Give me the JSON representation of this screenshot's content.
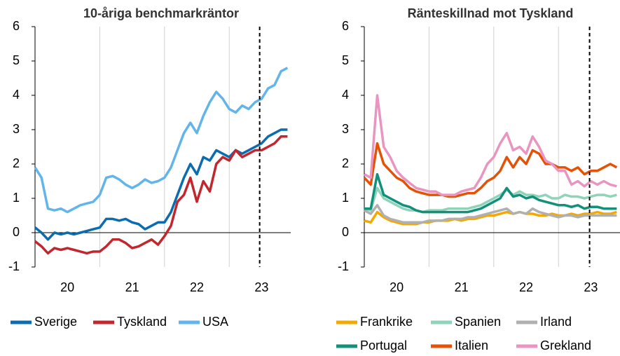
{
  "chart_data": [
    {
      "type": "line",
      "title": "10-åriga benchmarkräntor",
      "x": [
        20.0,
        20.1,
        20.2,
        20.3,
        20.4,
        20.5,
        20.6,
        20.7,
        20.8,
        20.9,
        21.0,
        21.1,
        21.2,
        21.3,
        21.4,
        21.5,
        21.6,
        21.7,
        21.8,
        21.9,
        22.0,
        22.1,
        22.2,
        22.3,
        22.4,
        22.5,
        22.6,
        22.7,
        22.8,
        22.9,
        23.0,
        23.1,
        23.2,
        23.3,
        23.4,
        23.5,
        23.6,
        23.7,
        23.8,
        23.9
      ],
      "xlim": [
        20.0,
        23.95
      ],
      "xticks": [
        20,
        21,
        22,
        23
      ],
      "ylim": [
        -1,
        6
      ],
      "yticks": [
        -1,
        0,
        1,
        2,
        3,
        4,
        5,
        6
      ],
      "vline_x": 23.47,
      "series": [
        {
          "name": "Sverige",
          "color": "#0b6cb0",
          "values": [
            0.15,
            0.0,
            -0.2,
            0.0,
            -0.05,
            0.0,
            -0.05,
            0.0,
            0.05,
            0.1,
            0.15,
            0.4,
            0.4,
            0.35,
            0.4,
            0.3,
            0.25,
            0.1,
            0.2,
            0.3,
            0.3,
            0.6,
            1.1,
            1.6,
            2.0,
            1.7,
            2.2,
            2.1,
            2.4,
            2.3,
            2.2,
            2.4,
            2.3,
            2.4,
            2.5,
            2.6,
            2.8,
            2.9,
            3.0,
            3.0
          ]
        },
        {
          "name": "Tyskland",
          "color": "#c1272d",
          "values": [
            -0.25,
            -0.4,
            -0.6,
            -0.45,
            -0.5,
            -0.45,
            -0.5,
            -0.55,
            -0.6,
            -0.55,
            -0.55,
            -0.4,
            -0.2,
            -0.2,
            -0.3,
            -0.45,
            -0.4,
            -0.3,
            -0.2,
            -0.35,
            -0.1,
            0.2,
            0.9,
            1.1,
            1.6,
            0.9,
            1.5,
            1.2,
            2.0,
            2.2,
            2.1,
            2.4,
            2.2,
            2.3,
            2.4,
            2.4,
            2.5,
            2.6,
            2.8,
            2.8
          ]
        },
        {
          "name": "USA",
          "color": "#62b5ea",
          "values": [
            1.9,
            1.6,
            0.7,
            0.65,
            0.7,
            0.6,
            0.7,
            0.8,
            0.85,
            0.9,
            1.1,
            1.6,
            1.65,
            1.55,
            1.4,
            1.3,
            1.4,
            1.55,
            1.45,
            1.5,
            1.6,
            1.9,
            2.4,
            2.9,
            3.2,
            2.9,
            3.4,
            3.8,
            4.1,
            3.9,
            3.6,
            3.5,
            3.7,
            3.6,
            3.8,
            3.9,
            4.2,
            4.3,
            4.7,
            4.8
          ]
        }
      ]
    },
    {
      "type": "line",
      "title": "Ränteskillnad mot Tyskland",
      "x": [
        20.0,
        20.1,
        20.2,
        20.3,
        20.4,
        20.5,
        20.6,
        20.7,
        20.8,
        20.9,
        21.0,
        21.1,
        21.2,
        21.3,
        21.4,
        21.5,
        21.6,
        21.7,
        21.8,
        21.9,
        22.0,
        22.1,
        22.2,
        22.3,
        22.4,
        22.5,
        22.6,
        22.7,
        22.8,
        22.9,
        23.0,
        23.1,
        23.2,
        23.3,
        23.4,
        23.5,
        23.6,
        23.7,
        23.8,
        23.9
      ],
      "xlim": [
        20.0,
        23.95
      ],
      "xticks": [
        20,
        21,
        22,
        23
      ],
      "ylim": [
        -1,
        6
      ],
      "yticks": [
        -1,
        0,
        1,
        2,
        3,
        4,
        5,
        6
      ],
      "vline_x": 23.48,
      "series": [
        {
          "name": "Frankrike",
          "color": "#f5a800",
          "values": [
            0.35,
            0.3,
            0.6,
            0.45,
            0.35,
            0.3,
            0.25,
            0.25,
            0.25,
            0.3,
            0.3,
            0.35,
            0.35,
            0.35,
            0.4,
            0.35,
            0.4,
            0.4,
            0.45,
            0.5,
            0.5,
            0.55,
            0.6,
            0.55,
            0.6,
            0.55,
            0.55,
            0.5,
            0.5,
            0.55,
            0.5,
            0.5,
            0.55,
            0.5,
            0.55,
            0.55,
            0.6,
            0.55,
            0.55,
            0.6
          ]
        },
        {
          "name": "Spanien",
          "color": "#8fd3b9",
          "values": [
            0.7,
            0.65,
            1.3,
            1.0,
            0.9,
            0.8,
            0.7,
            0.65,
            0.65,
            0.6,
            0.65,
            0.65,
            0.65,
            0.7,
            0.7,
            0.7,
            0.7,
            0.75,
            0.8,
            0.9,
            1.0,
            1.1,
            1.25,
            1.1,
            1.2,
            1.1,
            1.1,
            1.05,
            1.1,
            1.0,
            1.0,
            1.1,
            1.05,
            1.05,
            1.0,
            1.05,
            1.1,
            1.1,
            1.05,
            1.1
          ]
        },
        {
          "name": "Irland",
          "color": "#b0b0b0",
          "values": [
            0.65,
            0.55,
            0.8,
            0.5,
            0.4,
            0.35,
            0.3,
            0.3,
            0.3,
            0.3,
            0.35,
            0.35,
            0.35,
            0.4,
            0.4,
            0.4,
            0.45,
            0.45,
            0.5,
            0.55,
            0.6,
            0.65,
            0.7,
            0.55,
            0.6,
            0.55,
            0.7,
            0.6,
            0.55,
            0.5,
            0.45,
            0.5,
            0.5,
            0.45,
            0.5,
            0.5,
            0.5,
            0.5,
            0.5,
            0.5
          ]
        },
        {
          "name": "Portugal",
          "color": "#12907a",
          "values": [
            0.7,
            0.7,
            1.7,
            1.1,
            1.0,
            0.9,
            0.8,
            0.75,
            0.65,
            0.6,
            0.6,
            0.6,
            0.6,
            0.6,
            0.6,
            0.6,
            0.6,
            0.65,
            0.7,
            0.8,
            0.9,
            1.0,
            1.3,
            1.05,
            1.1,
            1.0,
            1.05,
            0.95,
            0.9,
            0.85,
            0.8,
            0.8,
            0.75,
            0.8,
            0.7,
            0.75,
            0.75,
            0.7,
            0.7,
            0.7
          ]
        },
        {
          "name": "Italien",
          "color": "#e35205",
          "values": [
            1.6,
            1.4,
            2.6,
            2.0,
            1.8,
            1.6,
            1.5,
            1.3,
            1.2,
            1.15,
            1.1,
            1.1,
            1.1,
            1.05,
            1.05,
            1.1,
            1.15,
            1.15,
            1.3,
            1.5,
            1.6,
            1.8,
            2.2,
            1.9,
            2.2,
            2.0,
            2.4,
            2.3,
            2.0,
            2.0,
            1.9,
            1.9,
            1.8,
            1.9,
            1.7,
            1.8,
            1.8,
            1.9,
            2.0,
            1.9
          ]
        },
        {
          "name": "Grekland",
          "color": "#e995c0",
          "values": [
            1.7,
            1.6,
            4.0,
            2.5,
            2.2,
            1.8,
            1.6,
            1.45,
            1.3,
            1.25,
            1.2,
            1.2,
            1.1,
            1.1,
            1.1,
            1.2,
            1.25,
            1.3,
            1.6,
            2.0,
            2.2,
            2.6,
            2.9,
            2.4,
            2.5,
            2.3,
            2.8,
            2.5,
            2.1,
            2.0,
            1.8,
            1.8,
            1.4,
            1.5,
            1.35,
            1.5,
            1.4,
            1.5,
            1.4,
            1.35
          ]
        }
      ]
    }
  ]
}
